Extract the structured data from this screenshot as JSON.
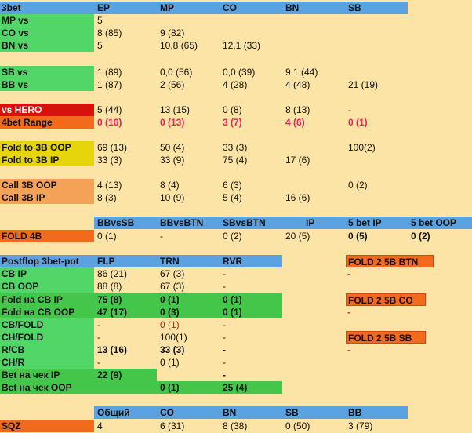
{
  "top": {
    "corner": "3bet",
    "headers": [
      "EP",
      "MP",
      "CO",
      "BN",
      "SB"
    ],
    "rows": [
      {
        "label": "MP vs",
        "vals": [
          "5",
          "",
          "",
          "",
          ""
        ]
      },
      {
        "label": "CO vs",
        "vals": [
          "8 (85)",
          "9 (82)",
          "",
          "",
          ""
        ]
      },
      {
        "label": "BN vs",
        "vals": [
          "5",
          "10,8 (65)",
          "12,1 (33)",
          "",
          ""
        ]
      },
      {
        "label": "SB vs",
        "vals": [
          "1 (89)",
          "0,0 (56)",
          "0,0 (39)",
          "9,1 (44)",
          ""
        ]
      },
      {
        "label": "BB vs",
        "vals": [
          "1 (87)",
          "2 (56)",
          "4 (28)",
          "4 (48)",
          "21 (19)"
        ]
      },
      {
        "label": "vs HERO",
        "vals": [
          "5 (44)",
          "13 (15)",
          "0 (8)",
          "8 (13)",
          "-"
        ]
      },
      {
        "label": "4bet Range",
        "vals": [
          "0 (16)",
          "0 (13)",
          "3 (7)",
          "4 (6)",
          "0 (1)"
        ]
      },
      {
        "label": "Fold to 3B OOP",
        "vals": [
          "69 (13)",
          "50 (4)",
          "33 (3)",
          "",
          "100(2)"
        ]
      },
      {
        "label": "Fold to 3B IP",
        "vals": [
          "33 (3)",
          "33 (9)",
          "75 (4)",
          "17 (6)",
          ""
        ]
      },
      {
        "label": "Call 3B OOP",
        "vals": [
          "4 (13)",
          "8 (4)",
          "6 (3)",
          "",
          "0 (2)"
        ]
      },
      {
        "label": "Call 3B IP",
        "vals": [
          "8 (3)",
          "10 (9)",
          "5 (4)",
          "16 (6)",
          ""
        ]
      }
    ]
  },
  "fold4b": {
    "headers": [
      "BBvsSB",
      "BBvsBTN",
      "SBvsBTN",
      "IP",
      "5 bet IP",
      "5 bet OOP"
    ],
    "label": "FOLD 4B",
    "vals": [
      "0 (1)",
      "-",
      "0 (2)",
      "20 (5)",
      "0 (5)",
      "0 (2)"
    ]
  },
  "postflop": {
    "title": "Postflop 3bet-pot",
    "headers": [
      "FLP",
      "TRN",
      "RVR"
    ],
    "rows": [
      {
        "label": "CB  IP",
        "vals": [
          "86 (21)",
          "67 (3)",
          "-"
        ]
      },
      {
        "label": "CB OOP",
        "vals": [
          "88 (8)",
          "67 (3)",
          "-"
        ]
      },
      {
        "label": "Fold на CB IP",
        "vals": [
          "75 (8)",
          "0 (1)",
          "0 (1)"
        ]
      },
      {
        "label": "Fold на CB OOP",
        "vals": [
          "47 (17)",
          "0 (3)",
          "0 (1)"
        ]
      },
      {
        "label": "CB/FOLD",
        "vals": [
          "-",
          "0 (1)",
          "-"
        ]
      },
      {
        "label": "CH/FOLD",
        "vals": [
          "-",
          "100(1)",
          "-"
        ]
      },
      {
        "label": "R/CB",
        "vals": [
          "13 (16)",
          "33 (3)",
          "-"
        ]
      },
      {
        "label": "CH/R",
        "vals": [
          "-",
          "0 (1)",
          "-"
        ]
      },
      {
        "label": "Bet на чек IP",
        "vals": [
          "22 (9)",
          "",
          "-"
        ]
      },
      {
        "label": "Bet на чек OOP",
        "vals": [
          "",
          "0 (1)",
          "25 (4)"
        ]
      }
    ],
    "fold5b": [
      {
        "label": "FOLD 2 5B  BTN",
        "val": "-"
      },
      {
        "label": "FOLD 2 5B CO",
        "val": "-"
      },
      {
        "label": "FOLD 2 5B SB",
        "val": "-"
      }
    ]
  },
  "sqz": {
    "headers": [
      "Общий",
      "CO",
      "BN",
      "SB",
      "BB"
    ],
    "label": "SQZ",
    "vals": [
      "4",
      "6 (31)",
      "8 (38)",
      "0 (50)",
      "3 (79)"
    ]
  }
}
